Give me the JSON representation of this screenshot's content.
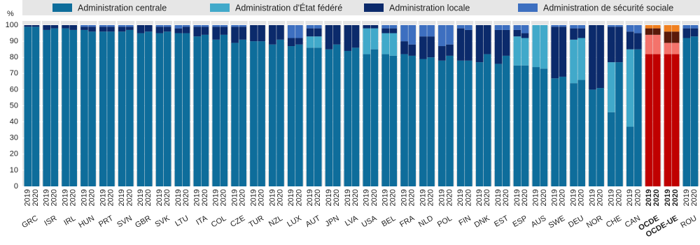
{
  "chart_data": {
    "type": "stacked-bar",
    "y_label": "%",
    "ylim": [
      0,
      100
    ],
    "yticks": [
      0,
      10,
      20,
      30,
      40,
      50,
      60,
      70,
      80,
      90,
      100
    ],
    "grid": true,
    "years": [
      "2019",
      "2020"
    ],
    "categories": [
      "GRC",
      "ISR",
      "IRL",
      "HUN",
      "PRT",
      "SVN",
      "GBR",
      "SVK",
      "LTU",
      "ITA",
      "COL",
      "CZE",
      "TUR",
      "NZL",
      "LUX",
      "AUT",
      "JPN",
      "LVA",
      "USA",
      "BEL",
      "FRA",
      "NLD",
      "POL",
      "FIN",
      "DNK",
      "EST",
      "ESP",
      "AUS",
      "SWE",
      "DEU",
      "NOR",
      "CHE",
      "CAN",
      "OCDE",
      "OCDE-UE",
      "ROU"
    ],
    "highlight_categories": [
      "OCDE",
      "OCDE-UE"
    ],
    "series": [
      {
        "name": "Administration centrale",
        "color": "#0e6d9b",
        "highlight_color": "#c00000",
        "values": [
          [
            99,
            99
          ],
          [
            97,
            98
          ],
          [
            98,
            97
          ],
          [
            97,
            96
          ],
          [
            96,
            96
          ],
          [
            96,
            97
          ],
          [
            95,
            96
          ],
          [
            95,
            96
          ],
          [
            95,
            95
          ],
          [
            93,
            94
          ],
          [
            91,
            94
          ],
          [
            89,
            91
          ],
          [
            90,
            90
          ],
          [
            88,
            91
          ],
          [
            87,
            88
          ],
          [
            86,
            86
          ],
          [
            85,
            88
          ],
          [
            84,
            86
          ],
          [
            82,
            85
          ],
          [
            82,
            81
          ],
          [
            82,
            81
          ],
          [
            79,
            80
          ],
          [
            78,
            81
          ],
          [
            78,
            78
          ],
          [
            77,
            82
          ],
          [
            76,
            81
          ],
          [
            75,
            75
          ],
          [
            74,
            73
          ],
          [
            67,
            68
          ],
          [
            64,
            66
          ],
          [
            60,
            61
          ],
          [
            46,
            77
          ],
          [
            37,
            85
          ],
          [
            82,
            82
          ],
          [
            82,
            82
          ],
          [
            92,
            93
          ]
        ]
      },
      {
        "name": "Administration d'État fédéré",
        "color": "#41a9ca",
        "highlight_color": "#f4736b",
        "values": [
          [
            0,
            0
          ],
          [
            0,
            0
          ],
          [
            0,
            0
          ],
          [
            0,
            0
          ],
          [
            0,
            0
          ],
          [
            0,
            0
          ],
          [
            0,
            0
          ],
          [
            0,
            0
          ],
          [
            0,
            0
          ],
          [
            0,
            0
          ],
          [
            0,
            0
          ],
          [
            0,
            0
          ],
          [
            0,
            0
          ],
          [
            0,
            0
          ],
          [
            0,
            0
          ],
          [
            7,
            7
          ],
          [
            0,
            0
          ],
          [
            0,
            0
          ],
          [
            16,
            13
          ],
          [
            13,
            14
          ],
          [
            0,
            0
          ],
          [
            0,
            0
          ],
          [
            0,
            0
          ],
          [
            0,
            0
          ],
          [
            0,
            0
          ],
          [
            0,
            0
          ],
          [
            18,
            17
          ],
          [
            26,
            27
          ],
          [
            0,
            0
          ],
          [
            27,
            26
          ],
          [
            0,
            0
          ],
          [
            31,
            0
          ],
          [
            48,
            0
          ],
          [
            12,
            12
          ],
          [
            7,
            7
          ],
          [
            0,
            0
          ]
        ]
      },
      {
        "name": "Administration locale",
        "color": "#0b2a6b",
        "highlight_color": "#5a1a0a",
        "values": [
          [
            1,
            1
          ],
          [
            3,
            2
          ],
          [
            2,
            3
          ],
          [
            2,
            3
          ],
          [
            3,
            3
          ],
          [
            3,
            2
          ],
          [
            5,
            4
          ],
          [
            4,
            3
          ],
          [
            3,
            4
          ],
          [
            6,
            5
          ],
          [
            8,
            5
          ],
          [
            10,
            8
          ],
          [
            10,
            10
          ],
          [
            12,
            9
          ],
          [
            5,
            4
          ],
          [
            5,
            5
          ],
          [
            15,
            12
          ],
          [
            16,
            14
          ],
          [
            2,
            2
          ],
          [
            3,
            3
          ],
          [
            8,
            7
          ],
          [
            14,
            13
          ],
          [
            9,
            7
          ],
          [
            20,
            19
          ],
          [
            23,
            18
          ],
          [
            21,
            16
          ],
          [
            4,
            3
          ],
          [
            0,
            0
          ],
          [
            32,
            31
          ],
          [
            7,
            6
          ],
          [
            40,
            39
          ],
          [
            22,
            22
          ],
          [
            11,
            10
          ],
          [
            4,
            4
          ],
          [
            7,
            7
          ],
          [
            6,
            5
          ]
        ]
      },
      {
        "name": "Administration de sécurité sociale",
        "color": "#3d6fc0",
        "highlight_color": "#f08020",
        "values": [
          [
            0,
            0
          ],
          [
            0,
            0
          ],
          [
            0,
            0
          ],
          [
            1,
            1
          ],
          [
            1,
            1
          ],
          [
            1,
            1
          ],
          [
            0,
            0
          ],
          [
            1,
            1
          ],
          [
            2,
            1
          ],
          [
            1,
            1
          ],
          [
            1,
            1
          ],
          [
            1,
            1
          ],
          [
            0,
            0
          ],
          [
            0,
            0
          ],
          [
            8,
            8
          ],
          [
            2,
            2
          ],
          [
            0,
            0
          ],
          [
            0,
            0
          ],
          [
            0,
            0
          ],
          [
            2,
            2
          ],
          [
            10,
            12
          ],
          [
            7,
            7
          ],
          [
            13,
            12
          ],
          [
            2,
            3
          ],
          [
            0,
            0
          ],
          [
            3,
            3
          ],
          [
            3,
            5
          ],
          [
            0,
            0
          ],
          [
            1,
            1
          ],
          [
            2,
            2
          ],
          [
            0,
            0
          ],
          [
            1,
            1
          ],
          [
            4,
            5
          ],
          [
            2,
            2
          ],
          [
            4,
            4
          ],
          [
            2,
            2
          ]
        ]
      }
    ]
  }
}
